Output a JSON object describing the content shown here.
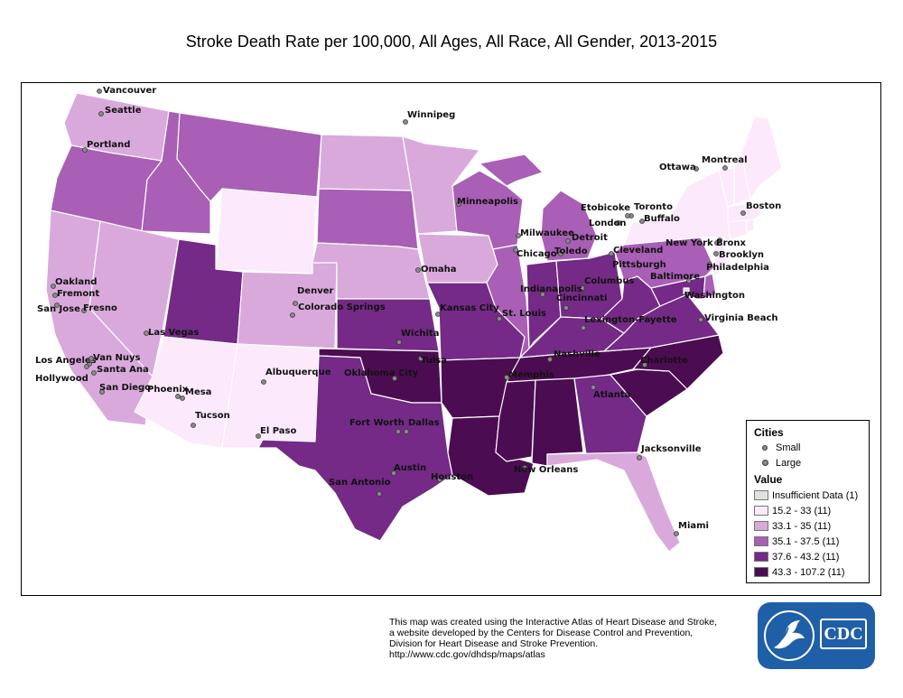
{
  "title": "Stroke Death Rate per 100,000, All Ages, All Race, All Gender, 2013-2015",
  "legend": {
    "cities_heading": "Cities",
    "city_small": "Small",
    "city_large": "Large",
    "value_heading": "Value",
    "classes": [
      {
        "label": "Insufficient Data (1)",
        "color": "#e0e0e0"
      },
      {
        "label": "15.2 - 33 (11)",
        "color": "#fce9fb"
      },
      {
        "label": "33.1 - 35 (11)",
        "color": "#d9a9dc"
      },
      {
        "label": "35.1 - 37.5 (11)",
        "color": "#a85fb5"
      },
      {
        "label": "37.6 - 43.2 (11)",
        "color": "#742a86"
      },
      {
        "label": "43.3 - 107.2 (11)",
        "color": "#4c0c52"
      }
    ]
  },
  "states": {
    "WA": 2,
    "OR": 3,
    "CA": 2,
    "ID": 3,
    "NV": 2,
    "MT": 3,
    "WY": 1,
    "UT": 4,
    "AZ": 1,
    "CO": 2,
    "NM": 1,
    "ND": 2,
    "SD": 3,
    "NE": 2,
    "KS": 4,
    "OK": 5,
    "TX": 4,
    "MN": 2,
    "IA": 2,
    "MO": 4,
    "AR": 5,
    "LA": 5,
    "WI": 3,
    "IL": 3,
    "MI": 3,
    "IN": 4,
    "OH": 4,
    "KY": 4,
    "TN": 5,
    "MS": 5,
    "AL": 5,
    "GA": 4,
    "FL": 2,
    "SC": 5,
    "NC": 5,
    "VA": 4,
    "WV": 4,
    "PA": 3,
    "NY": 1,
    "ME": 1,
    "VT": 1,
    "NH": 1,
    "MA": 1,
    "CT": 1,
    "RI": 1,
    "NJ": 1,
    "DE": 3,
    "MD": 4,
    "DC": 0
  },
  "cities": [
    "Vancouver",
    "Seattle",
    "Portland",
    "Winnipeg",
    "Oakland",
    "Fremont",
    "San Jose",
    "Fresno",
    "Las Vegas",
    "Los Angeles",
    "Van Nuys",
    "Santa Ana",
    "Hollywood",
    "San Diego",
    "Phoenix",
    "Mesa",
    "Tucson",
    "Albuquerque",
    "El Paso",
    "Denver",
    "Colorado Springs",
    "Wichita",
    "Kansas City",
    "Omaha",
    "Minneapolis",
    "Milwaukee",
    "Chicago",
    "Detroit",
    "Toledo",
    "Cleveland",
    "Columbus",
    "Indianapolis",
    "Cincinnati",
    "Lexington-Fayette",
    "Nashville",
    "Memphis",
    "St. Louis",
    "Tulsa",
    "Oklahoma City",
    "Fort Worth",
    "Dallas",
    "Austin",
    "San Antonio",
    "Houston",
    "New Orleans",
    "Atlanta",
    "Charlotte",
    "Jacksonville",
    "Miami",
    "Virginia Beach",
    "Washington",
    "Baltimore",
    "Philadelphia",
    "Pittsburgh",
    "New York",
    "Bronx",
    "Brooklyn",
    "Boston",
    "Montreal",
    "Ottawa",
    "Toronto",
    "Buffalo",
    "Etobicoke",
    "London"
  ],
  "footer": [
    "This map was created using the Interactive Atlas of Heart Disease and Stroke,",
    "a website developed by the Centers for Disease Control and Prevention,",
    "Division for Heart Disease and Stroke Prevention.",
    "http://www.cdc.gov/dhdsp/maps/atlas"
  ],
  "logo_text": "CDC"
}
